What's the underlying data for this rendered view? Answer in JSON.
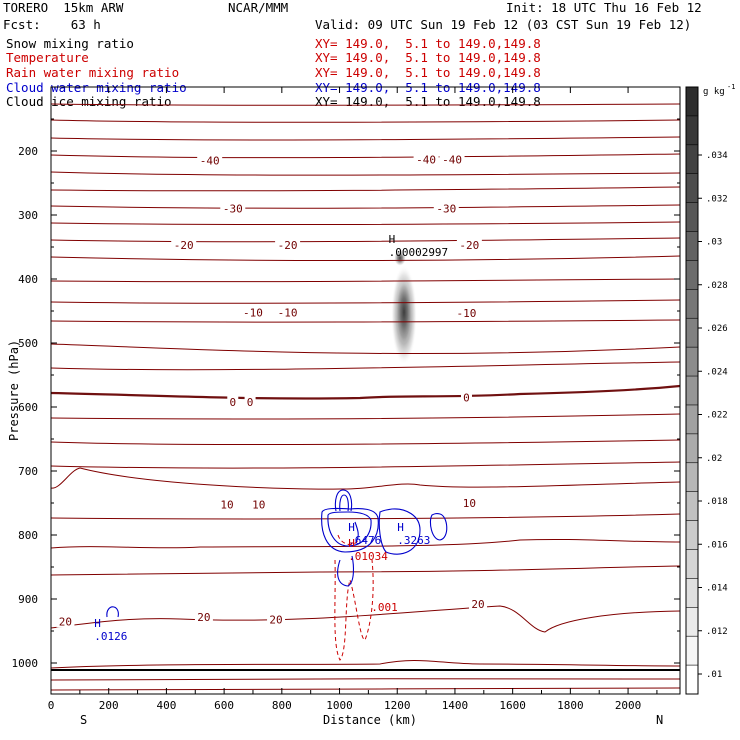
{
  "header": {
    "model": "TORERO  15km ARW",
    "org": "NCAR/MMM",
    "init": "Init: 18 UTC Thu 16 Feb 12",
    "fcst": "Fcst:    63 h",
    "valid": "Valid: 09 UTC Sun 19 Feb 12 (03 CST Sun 19 Feb 12)"
  },
  "fields": [
    {
      "name": "Snow mixing ratio",
      "xy": "XY= 149.0,  5.1 to 149.0,149.8",
      "color": "#000000"
    },
    {
      "name": "Temperature",
      "xy": "XY= 149.0,  5.1 to 149.0,149.8",
      "color": "#cc0000"
    },
    {
      "name": "Rain water mixing ratio",
      "xy": "XY= 149.0,  5.1 to 149.0,149.8",
      "color": "#cc0000"
    },
    {
      "name": "Cloud water mixing ratio",
      "xy": "XY= 149.0,  5.1 to 149.0,149.8",
      "color": "#0000cc"
    },
    {
      "name": "Cloud ice mixing ratio",
      "xy": "XY= 149.0,  5.1 to 149.0,149.8",
      "color": "#000000"
    }
  ],
  "chart_data": {
    "type": "cross-section contour",
    "xlabel": "Distance (km)",
    "ylabel": "Pressure (hPa)",
    "xlim": [
      0,
      2180
    ],
    "ylim": [
      1050,
      100
    ],
    "xticks": [
      0,
      200,
      400,
      600,
      800,
      1000,
      1200,
      1400,
      1600,
      1800,
      2000
    ],
    "yticks": [
      200,
      300,
      400,
      500,
      600,
      700,
      800,
      900,
      1000
    ],
    "end_labels": {
      "left": "S",
      "right": "N"
    },
    "temperature_labels": [
      {
        "text": "-40",
        "x": 550,
        "p": 215
      },
      {
        "text": "-40",
        "x": 1300,
        "p": 213
      },
      {
        "text": "-40",
        "x": 1390,
        "p": 213
      },
      {
        "text": "-30",
        "x": 630,
        "p": 290
      },
      {
        "text": "-30",
        "x": 1370,
        "p": 290
      },
      {
        "text": "-20",
        "x": 460,
        "p": 347
      },
      {
        "text": "-20",
        "x": 820,
        "p": 347
      },
      {
        "text": "-20",
        "x": 1450,
        "p": 347
      },
      {
        "text": "-10",
        "x": 700,
        "p": 452
      },
      {
        "text": "-10",
        "x": 820,
        "p": 452
      },
      {
        "text": "-10",
        "x": 1440,
        "p": 453
      },
      {
        "text": "0",
        "x": 630,
        "p": 592
      },
      {
        "text": "0",
        "x": 690,
        "p": 592
      },
      {
        "text": "0",
        "x": 1440,
        "p": 585
      },
      {
        "text": "10",
        "x": 610,
        "p": 752
      },
      {
        "text": "10",
        "x": 720,
        "p": 752
      },
      {
        "text": "10",
        "x": 1450,
        "p": 750
      },
      {
        "text": "20",
        "x": 50,
        "p": 935
      },
      {
        "text": "20",
        "x": 530,
        "p": 928
      },
      {
        "text": "20",
        "x": 780,
        "p": 932
      },
      {
        "text": "20",
        "x": 1480,
        "p": 908
      }
    ],
    "maxima": [
      {
        "mark": "H",
        "value": ".00002997",
        "x": 1170,
        "p": 350,
        "color": "#000000"
      },
      {
        "mark": "H",
        "value": ".6476",
        "x": 1030,
        "p": 800,
        "color": "#0000cc"
      },
      {
        "mark": "H",
        "value": ".3263",
        "x": 1200,
        "p": 800,
        "color": "#0000cc"
      },
      {
        "mark": "H",
        "value": ".01034",
        "x": 1030,
        "p": 825,
        "color": "#cc0000"
      },
      {
        "mark": "H",
        "value": ".0126",
        "x": 150,
        "p": 950,
        "color": "#0000cc"
      },
      {
        "mark": "",
        "value": ".001",
        "x": 1110,
        "p": 905,
        "color": "#cc0000"
      }
    ],
    "colorbar": {
      "unit": "g kg",
      "unit_sup": "-1",
      "ticks": [
        ".034",
        ".032",
        ".03",
        ".028",
        ".026",
        ".024",
        ".022",
        ".02",
        ".018",
        ".016",
        ".014",
        ".012",
        ".01"
      ]
    }
  }
}
